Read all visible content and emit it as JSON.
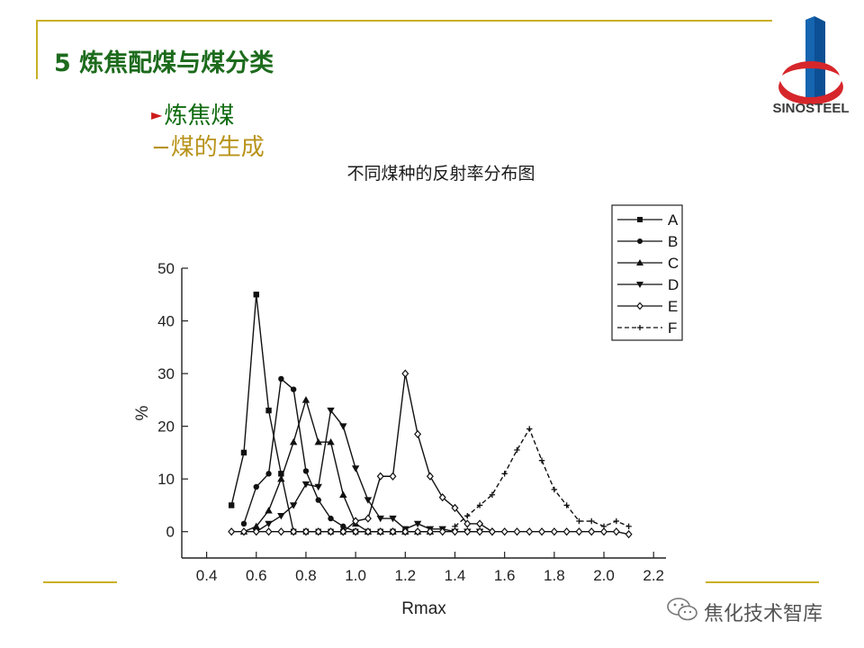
{
  "slide": {
    "title": "5 炼焦配煤与煤分类",
    "bullet1": "炼焦煤",
    "bullet2": "−煤的生成",
    "logo_text": "SINOSTEEL",
    "watermark": "焦化技术智库"
  },
  "colors": {
    "accent_gold": "#c9b026",
    "title_green": "#1d6b1d",
    "logo_red": "#d6262b",
    "logo_blue": "#1565b0"
  },
  "chart_data": {
    "type": "line",
    "title": "不同煤种的反射率分布图",
    "xlabel": "Rmax",
    "ylabel": "%",
    "xlim": [
      0.3,
      2.25
    ],
    "ylim": [
      -5,
      50
    ],
    "xticks": [
      "0.4",
      "0.6",
      "0.8",
      "1.0",
      "1.2",
      "1.4",
      "1.6",
      "1.8",
      "2.0",
      "2.2"
    ],
    "yticks": [
      "0",
      "10",
      "20",
      "30",
      "40",
      "50"
    ],
    "legend_position": "top-right",
    "series": [
      {
        "name": "A",
        "marker": "square",
        "points": [
          [
            0.5,
            5
          ],
          [
            0.55,
            15
          ],
          [
            0.6,
            45
          ],
          [
            0.65,
            23
          ],
          [
            0.7,
            11
          ],
          [
            0.75,
            0
          ],
          [
            0.8,
            0
          ],
          [
            0.85,
            0
          ],
          [
            0.9,
            0
          ],
          [
            0.95,
            0
          ],
          [
            1.0,
            0
          ],
          [
            1.05,
            0
          ],
          [
            1.1,
            0
          ],
          [
            1.15,
            0
          ],
          [
            1.2,
            0
          ]
        ]
      },
      {
        "name": "B",
        "marker": "circle",
        "points": [
          [
            0.55,
            1.5
          ],
          [
            0.6,
            8.5
          ],
          [
            0.65,
            11
          ],
          [
            0.7,
            29
          ],
          [
            0.75,
            27
          ],
          [
            0.8,
            11.5
          ],
          [
            0.85,
            6
          ],
          [
            0.9,
            2.5
          ],
          [
            0.95,
            1
          ],
          [
            1.0,
            0
          ],
          [
            1.05,
            0
          ],
          [
            1.1,
            0
          ],
          [
            1.15,
            0
          ],
          [
            1.2,
            0
          ],
          [
            1.25,
            0
          ],
          [
            1.3,
            0
          ]
        ]
      },
      {
        "name": "C",
        "marker": "triangle-up",
        "points": [
          [
            0.55,
            0
          ],
          [
            0.6,
            1
          ],
          [
            0.65,
            4
          ],
          [
            0.7,
            10
          ],
          [
            0.75,
            17
          ],
          [
            0.8,
            25
          ],
          [
            0.85,
            17
          ],
          [
            0.9,
            17
          ],
          [
            0.95,
            7
          ],
          [
            1.0,
            1.5
          ],
          [
            1.05,
            0
          ],
          [
            1.1,
            0
          ],
          [
            1.15,
            0
          ],
          [
            1.2,
            0
          ],
          [
            1.25,
            0
          ],
          [
            1.3,
            0
          ]
        ]
      },
      {
        "name": "D",
        "marker": "triangle-down",
        "points": [
          [
            0.6,
            0
          ],
          [
            0.65,
            1.5
          ],
          [
            0.7,
            3
          ],
          [
            0.75,
            5
          ],
          [
            0.8,
            9
          ],
          [
            0.85,
            8.5
          ],
          [
            0.9,
            23
          ],
          [
            0.95,
            20
          ],
          [
            1.0,
            12
          ],
          [
            1.05,
            6
          ],
          [
            1.1,
            2.5
          ],
          [
            1.15,
            2.5
          ],
          [
            1.2,
            0.5
          ],
          [
            1.25,
            1.5
          ],
          [
            1.3,
            0.5
          ],
          [
            1.35,
            0.5
          ],
          [
            1.4,
            0
          ],
          [
            1.45,
            0
          ],
          [
            1.5,
            0
          ]
        ]
      },
      {
        "name": "E",
        "marker": "diamond",
        "points": [
          [
            0.95,
            0
          ],
          [
            1.0,
            2
          ],
          [
            1.05,
            2.5
          ],
          [
            1.1,
            10.5
          ],
          [
            1.15,
            10.5
          ],
          [
            1.2,
            30
          ],
          [
            1.25,
            18.5
          ],
          [
            1.3,
            10.5
          ],
          [
            1.35,
            6.5
          ],
          [
            1.4,
            4.5
          ],
          [
            1.45,
            1.5
          ],
          [
            1.5,
            1.5
          ],
          [
            1.55,
            0
          ]
        ]
      },
      {
        "name": "F",
        "marker": "plus",
        "points": [
          [
            1.4,
            1
          ],
          [
            1.45,
            3
          ],
          [
            1.5,
            5
          ],
          [
            1.55,
            7
          ],
          [
            1.6,
            11
          ],
          [
            1.65,
            15.5
          ],
          [
            1.7,
            19.5
          ],
          [
            1.75,
            13.5
          ],
          [
            1.8,
            8
          ],
          [
            1.85,
            5
          ],
          [
            1.9,
            2
          ],
          [
            1.95,
            2
          ],
          [
            2.0,
            1
          ],
          [
            2.05,
            2
          ],
          [
            2.1,
            1
          ]
        ]
      },
      {
        "name": "baseline",
        "marker": "diamond",
        "legend": false,
        "points": [
          [
            0.5,
            0
          ],
          [
            0.55,
            0
          ],
          [
            0.6,
            0
          ],
          [
            0.65,
            0
          ],
          [
            0.7,
            0
          ],
          [
            0.75,
            0
          ],
          [
            0.8,
            0
          ],
          [
            0.85,
            0
          ],
          [
            0.9,
            0
          ],
          [
            0.95,
            0
          ],
          [
            1.0,
            0
          ],
          [
            1.05,
            0
          ],
          [
            1.1,
            0
          ],
          [
            1.15,
            0
          ],
          [
            1.2,
            0
          ],
          [
            1.25,
            0
          ],
          [
            1.3,
            0
          ],
          [
            1.35,
            0
          ],
          [
            1.4,
            0
          ],
          [
            1.45,
            0
          ],
          [
            1.5,
            0
          ],
          [
            1.55,
            0
          ],
          [
            1.6,
            0
          ],
          [
            1.65,
            0
          ],
          [
            1.7,
            0
          ],
          [
            1.75,
            0
          ],
          [
            1.8,
            0
          ],
          [
            1.85,
            0
          ],
          [
            1.9,
            0
          ],
          [
            1.95,
            0
          ],
          [
            2.0,
            0
          ],
          [
            2.05,
            0
          ],
          [
            2.1,
            -0.5
          ]
        ]
      }
    ]
  }
}
